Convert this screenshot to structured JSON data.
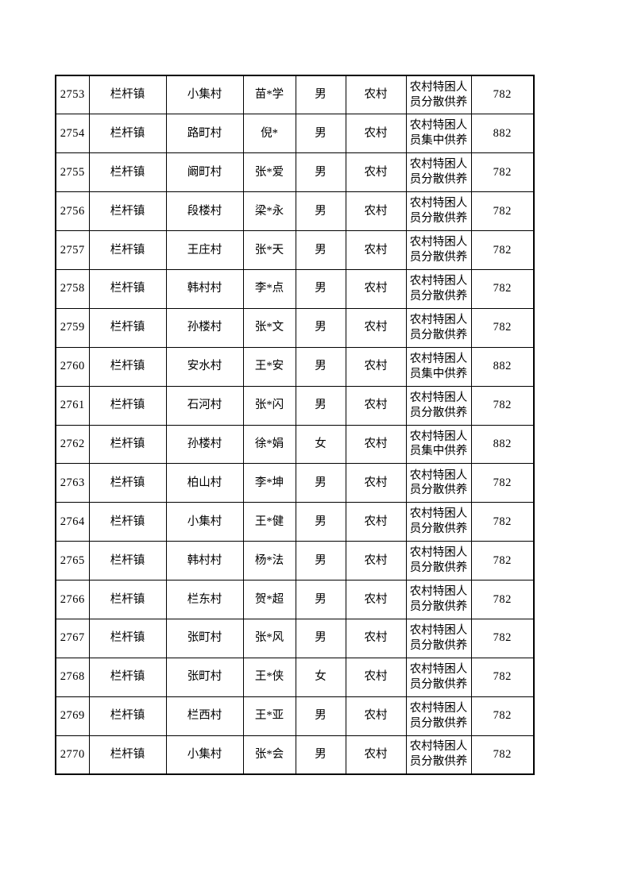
{
  "page": {
    "type": "printed-spreadsheet-page",
    "colors": {
      "background": "#ffffff",
      "text": "#000000",
      "border": "#000000"
    }
  },
  "table": {
    "rows": [
      {
        "seq": "2753",
        "town": "栏杆镇",
        "village": "小集村",
        "name": "苗*学",
        "gender": "男",
        "area": "农村",
        "support_type": "农村特困人员分散供养",
        "amount": "782"
      },
      {
        "seq": "2754",
        "town": "栏杆镇",
        "village": "路町村",
        "name": "倪*",
        "gender": "男",
        "area": "农村",
        "support_type": "农村特困人员集中供养",
        "amount": "882"
      },
      {
        "seq": "2755",
        "town": "栏杆镇",
        "village": "阚町村",
        "name": "张*爱",
        "gender": "男",
        "area": "农村",
        "support_type": "农村特困人员分散供养",
        "amount": "782"
      },
      {
        "seq": "2756",
        "town": "栏杆镇",
        "village": "段楼村",
        "name": "梁*永",
        "gender": "男",
        "area": "农村",
        "support_type": "农村特困人员分散供养",
        "amount": "782"
      },
      {
        "seq": "2757",
        "town": "栏杆镇",
        "village": "王庄村",
        "name": "张*天",
        "gender": "男",
        "area": "农村",
        "support_type": "农村特困人员分散供养",
        "amount": "782"
      },
      {
        "seq": "2758",
        "town": "栏杆镇",
        "village": "韩村村",
        "name": "李*点",
        "gender": "男",
        "area": "农村",
        "support_type": "农村特困人员分散供养",
        "amount": "782"
      },
      {
        "seq": "2759",
        "town": "栏杆镇",
        "village": "孙楼村",
        "name": "张*文",
        "gender": "男",
        "area": "农村",
        "support_type": "农村特困人员分散供养",
        "amount": "782"
      },
      {
        "seq": "2760",
        "town": "栏杆镇",
        "village": "安水村",
        "name": "王*安",
        "gender": "男",
        "area": "农村",
        "support_type": "农村特困人员集中供养",
        "amount": "882"
      },
      {
        "seq": "2761",
        "town": "栏杆镇",
        "village": "石河村",
        "name": "张*闪",
        "gender": "男",
        "area": "农村",
        "support_type": "农村特困人员分散供养",
        "amount": "782"
      },
      {
        "seq": "2762",
        "town": "栏杆镇",
        "village": "孙楼村",
        "name": "徐*娟",
        "gender": "女",
        "area": "农村",
        "support_type": "农村特困人员集中供养",
        "amount": "882"
      },
      {
        "seq": "2763",
        "town": "栏杆镇",
        "village": "柏山村",
        "name": "李*坤",
        "gender": "男",
        "area": "农村",
        "support_type": "农村特困人员分散供养",
        "amount": "782"
      },
      {
        "seq": "2764",
        "town": "栏杆镇",
        "village": "小集村",
        "name": "王*健",
        "gender": "男",
        "area": "农村",
        "support_type": "农村特困人员分散供养",
        "amount": "782"
      },
      {
        "seq": "2765",
        "town": "栏杆镇",
        "village": "韩村村",
        "name": "杨*法",
        "gender": "男",
        "area": "农村",
        "support_type": "农村特困人员分散供养",
        "amount": "782"
      },
      {
        "seq": "2766",
        "town": "栏杆镇",
        "village": "栏东村",
        "name": "贺*超",
        "gender": "男",
        "area": "农村",
        "support_type": "农村特困人员分散供养",
        "amount": "782"
      },
      {
        "seq": "2767",
        "town": "栏杆镇",
        "village": "张町村",
        "name": "张*风",
        "gender": "男",
        "area": "农村",
        "support_type": "农村特困人员分散供养",
        "amount": "782"
      },
      {
        "seq": "2768",
        "town": "栏杆镇",
        "village": "张町村",
        "name": "王*侠",
        "gender": "女",
        "area": "农村",
        "support_type": "农村特困人员分散供养",
        "amount": "782"
      },
      {
        "seq": "2769",
        "town": "栏杆镇",
        "village": "栏西村",
        "name": "王*亚",
        "gender": "男",
        "area": "农村",
        "support_type": "农村特困人员分散供养",
        "amount": "782"
      },
      {
        "seq": "2770",
        "town": "栏杆镇",
        "village": "小集村",
        "name": "张*会",
        "gender": "男",
        "area": "农村",
        "support_type": "农村特困人员分散供养",
        "amount": "782"
      }
    ]
  }
}
